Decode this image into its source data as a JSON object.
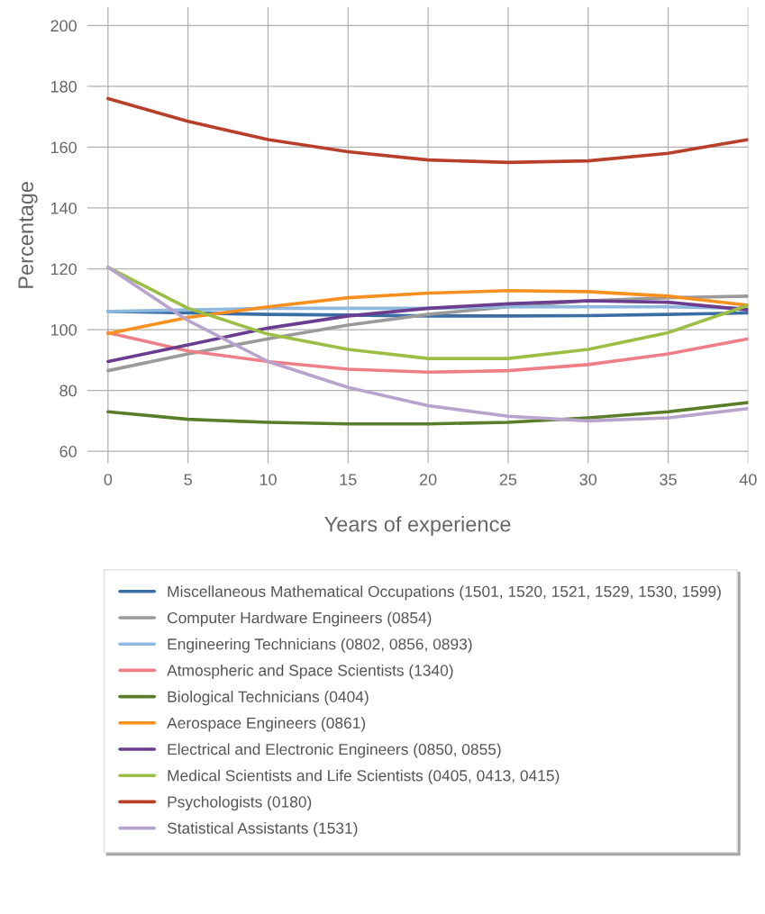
{
  "chart_data": {
    "type": "line",
    "xlabel": "Years of experience",
    "ylabel": "Percentage",
    "x": [
      0,
      5,
      10,
      15,
      20,
      25,
      30,
      35,
      40
    ],
    "xlim": [
      -1.3,
      40
    ],
    "ylim": [
      56,
      206
    ],
    "xticks": [
      0,
      5,
      10,
      15,
      20,
      25,
      30,
      35,
      40
    ],
    "yticks": [
      60,
      80,
      100,
      120,
      140,
      160,
      180,
      200
    ],
    "grid": true,
    "legend": "bottom",
    "marker": "none",
    "line_style": "solid",
    "series": [
      {
        "name": "Miscellaneous Mathematical Occupations (1501, 1520, 1521, 1529, 1530, 1599)",
        "color": "#3a6ea5",
        "values": [
          106,
          105.5,
          105,
          104.8,
          104.5,
          104.5,
          104.6,
          105,
          105.5
        ]
      },
      {
        "name": "Computer Hardware Engineers (0854)",
        "color": "#9a9a9a",
        "values": [
          86.5,
          92,
          97,
          101.5,
          105,
          107.5,
          109.5,
          110.5,
          111
        ]
      },
      {
        "name": "Engineering Technicians (0802, 0856, 0893)",
        "color": "#8fb8de",
        "values": [
          106,
          106.5,
          107,
          107,
          107,
          107.5,
          107.5,
          107.5,
          107
        ]
      },
      {
        "name": "Atmospheric and Space Scientists (1340)",
        "color": "#ef7f86",
        "values": [
          99,
          93,
          89.5,
          87,
          86,
          86.5,
          88.5,
          92,
          97
        ]
      },
      {
        "name": "Biological Technicians (0404)",
        "color": "#5a7d2a",
        "values": [
          73,
          70.5,
          69.5,
          69,
          69,
          69.5,
          71,
          73,
          76
        ]
      },
      {
        "name": "Aerospace Engineers (0861)",
        "color": "#f7901e",
        "values": [
          98.7,
          104,
          107.5,
          110.5,
          112,
          112.8,
          112.5,
          111,
          108
        ]
      },
      {
        "name": "Electrical and Electronic Engineers (0850, 0855)",
        "color": "#6a3d8f",
        "values": [
          89.5,
          95,
          100.5,
          104.5,
          107,
          108.5,
          109.5,
          109,
          106.5
        ]
      },
      {
        "name": "Medical Scientists and Life Scientists (0405, 0413, 0415)",
        "color": "#9bbf45",
        "values": [
          120.5,
          107,
          98.5,
          93.5,
          90.5,
          90.5,
          93.5,
          99,
          108
        ]
      },
      {
        "name": "Psychologists (0180)",
        "color": "#b8402a",
        "values": [
          176,
          168.5,
          162.5,
          158.5,
          155.8,
          155,
          155.5,
          158,
          162.5
        ]
      },
      {
        "name": "Statistical Assistants (1531)",
        "color": "#b8a3cc",
        "values": [
          120.5,
          103,
          89.5,
          81,
          75,
          71.5,
          70,
          71,
          74
        ]
      }
    ]
  }
}
